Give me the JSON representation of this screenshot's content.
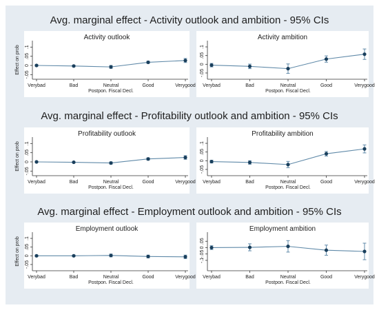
{
  "colors": {
    "outer_background": "#ffffff",
    "figure_background": "#e6ecf2",
    "panel_background": "#ffffff",
    "line_color": "#5f89a8",
    "point_color": "#1a3f5c",
    "text_color": "#1d1d1d"
  },
  "chart_data": [
    {
      "section_title": "Avg. marginal effect - Activity outlook and ambition - 95% CIs",
      "panels": [
        {
          "type": "line",
          "title": "Activity outlook",
          "xlabel": "Postpon. Fiscal Decl.",
          "ylabel": "Effect on prob",
          "categories": [
            "Verybad",
            "Bad",
            "Neutral",
            "Good",
            "Verygood"
          ],
          "ytick_labels": [
            ".1",
            ".05",
            "0",
            "-.05"
          ],
          "ytick_values": [
            0.1,
            0.05,
            0,
            -0.05
          ],
          "ylim": [
            -0.06,
            0.12
          ],
          "values": [
            0.0,
            -0.003,
            -0.008,
            0.017,
            0.027
          ],
          "ci_low": [
            -0.004,
            -0.007,
            -0.016,
            0.011,
            0.016
          ],
          "ci_high": [
            0.004,
            0.001,
            0.0,
            0.023,
            0.038
          ]
        },
        {
          "type": "line",
          "title": "Activity ambition",
          "xlabel": "Postpon. Fiscal Decl.",
          "ylabel": "",
          "categories": [
            "Verybad",
            "Bad",
            "Neutral",
            "Good",
            "Verygood"
          ],
          "ytick_labels": [
            ".1",
            ".05",
            "0",
            "-.05"
          ],
          "ytick_values": [
            0.1,
            0.05,
            0,
            -0.05
          ],
          "ylim": [
            -0.07,
            0.12
          ],
          "values": [
            -0.005,
            -0.012,
            -0.025,
            0.03,
            0.058
          ],
          "ci_low": [
            -0.015,
            -0.025,
            -0.052,
            0.012,
            0.028
          ],
          "ci_high": [
            0.005,
            0.001,
            0.002,
            0.048,
            0.088
          ]
        }
      ]
    },
    {
      "section_title": "Avg. marginal effect - Profitability outlook and ambition - 95% CIs",
      "panels": [
        {
          "type": "line",
          "title": "Profitability outlook",
          "xlabel": "Postpon. Fiscal Decl.",
          "ylabel": "Effect on prob",
          "categories": [
            "Verybad",
            "Bad",
            "Neutral",
            "Good",
            "Verygood"
          ],
          "ytick_labels": [
            ".1",
            ".05",
            "0",
            "-.05"
          ],
          "ytick_values": [
            0.1,
            0.05,
            0,
            -0.05
          ],
          "ylim": [
            -0.06,
            0.12
          ],
          "values": [
            0.0,
            -0.002,
            -0.006,
            0.016,
            0.024
          ],
          "ci_low": [
            -0.003,
            -0.005,
            -0.012,
            0.01,
            0.014
          ],
          "ci_high": [
            0.003,
            0.001,
            0.0,
            0.022,
            0.034
          ]
        },
        {
          "type": "line",
          "title": "Profitability ambition",
          "xlabel": "Postpon. Fiscal Decl.",
          "ylabel": "",
          "categories": [
            "Verybad",
            "Bad",
            "Neutral",
            "Good",
            "Verygood"
          ],
          "ytick_labels": [
            ".1",
            ".05",
            "0",
            "-.05"
          ],
          "ytick_values": [
            0.1,
            0.05,
            0,
            -0.05
          ],
          "ylim": [
            -0.07,
            0.12
          ],
          "values": [
            -0.005,
            -0.01,
            -0.022,
            0.04,
            0.068
          ],
          "ci_low": [
            -0.013,
            -0.02,
            -0.04,
            0.027,
            0.045
          ],
          "ci_high": [
            0.003,
            0.0,
            -0.004,
            0.053,
            0.091
          ]
        }
      ]
    },
    {
      "section_title": "Avg. marginal effect - Employment outlook and ambition - 95% CIs",
      "panels": [
        {
          "type": "line",
          "title": "Employment outlook",
          "xlabel": "Postpon. Fiscal Decl.",
          "ylabel": "Effect on prob",
          "categories": [
            "Verybad",
            "Bad",
            "Neutral",
            "Good",
            "Verygood"
          ],
          "ytick_labels": [
            ".1",
            ".05",
            "0",
            "-.05"
          ],
          "ytick_values": [
            0.1,
            0.05,
            0,
            -0.05
          ],
          "ylim": [
            -0.07,
            0.12
          ],
          "values": [
            0.0,
            0.0,
            0.002,
            -0.004,
            -0.006
          ],
          "ci_low": [
            -0.004,
            -0.004,
            -0.006,
            -0.012,
            -0.016
          ],
          "ci_high": [
            0.004,
            0.004,
            0.01,
            0.004,
            0.004
          ]
        },
        {
          "type": "line",
          "title": "Employment ambition",
          "xlabel": "Postpon. Fiscal Decl.",
          "ylabel": "",
          "categories": [
            "Verybad",
            "Bad",
            "Neutral",
            "Good",
            "Verygood"
          ],
          "ytick_labels": [
            ".05",
            "0",
            "-.05",
            "-.1"
          ],
          "ytick_values": [
            0.05,
            0,
            -0.05,
            -0.1
          ],
          "ylim": [
            -0.16,
            0.1
          ],
          "values": [
            0.0,
            0.002,
            0.01,
            -0.02,
            -0.03
          ],
          "ci_low": [
            -0.015,
            -0.025,
            -0.035,
            -0.06,
            -0.095
          ],
          "ci_high": [
            0.015,
            0.03,
            0.055,
            0.02,
            0.035
          ]
        }
      ]
    }
  ]
}
